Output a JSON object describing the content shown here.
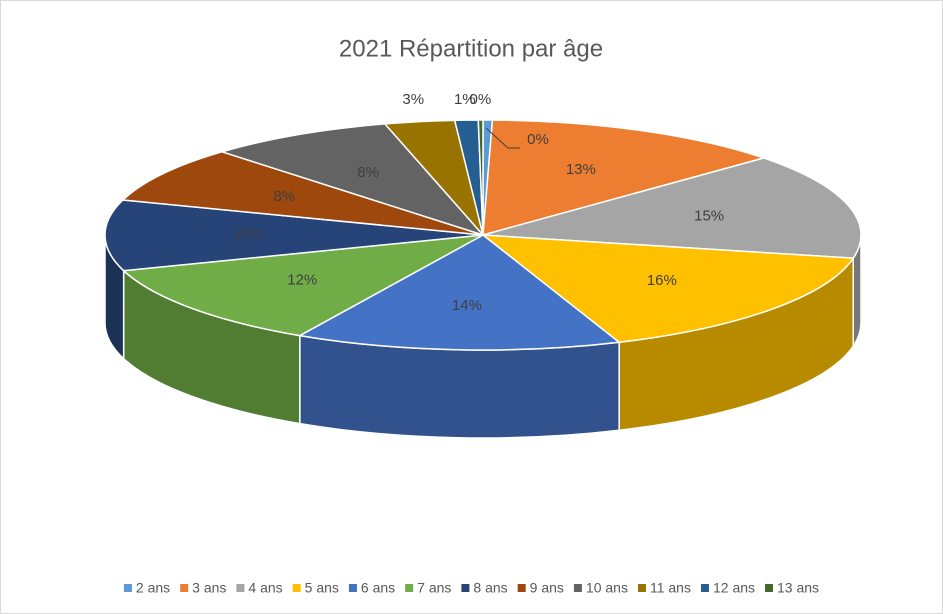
{
  "chart_data": {
    "type": "pie3d",
    "title": "2021 Répartition par âge",
    "categories": [
      "2 ans",
      "3 ans",
      "4 ans",
      "5 ans",
      "6 ans",
      "7 ans",
      "8 ans",
      "9 ans",
      "10 ans",
      "11 ans",
      "12 ans",
      "13 ans"
    ],
    "values": [
      0.4,
      13,
      15,
      16,
      14,
      12,
      10,
      8,
      8,
      3,
      1,
      0.2
    ],
    "value_labels": [
      "0%",
      "13%",
      "15%",
      "16%",
      "14%",
      "12%",
      "10%",
      "8%",
      "8%",
      "3%",
      "1%",
      "0%"
    ],
    "colors": [
      "#5b9bd5",
      "#ed7d31",
      "#a5a5a5",
      "#ffc000",
      "#4472c4",
      "#70ad47",
      "#264478",
      "#9e480e",
      "#636363",
      "#997300",
      "#255e91",
      "#43682b"
    ],
    "legend": "bottom"
  }
}
